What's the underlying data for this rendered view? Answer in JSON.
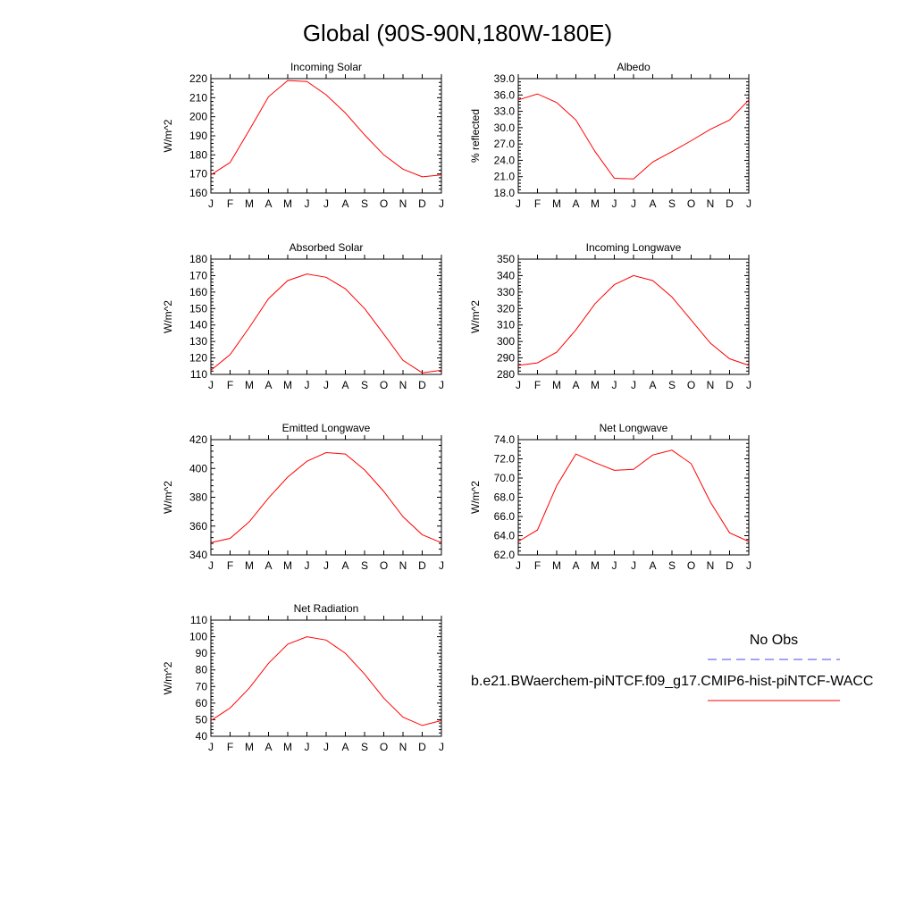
{
  "title": "Global (90S-90N,180W-180E)",
  "colors": {
    "model": "#ff0000",
    "obs": "#4a4ae8",
    "axis": "#000000"
  },
  "legend": {
    "obs_label": "No Obs",
    "model_label": "b.e21.BWaerchem-piNTCF.f09_g17.CMIP6-hist-piNTCF-WACC"
  },
  "chart_data": [
    {
      "type": "line",
      "title": "Incoming Solar",
      "ylabel": "W/m^2",
      "categories": [
        "J",
        "F",
        "M",
        "A",
        "M",
        "J",
        "J",
        "A",
        "S",
        "O",
        "N",
        "D",
        "J"
      ],
      "ylim": [
        160,
        220
      ],
      "yticks": [
        "220",
        "210",
        "200",
        "190",
        "180",
        "170",
        "160"
      ],
      "series": [
        {
          "values": [
            169.5,
            176,
            193,
            210.5,
            219,
            218.5,
            211.5,
            202,
            190.5,
            180,
            172.5,
            168.5,
            169.5
          ]
        }
      ]
    },
    {
      "type": "line",
      "title": "Albedo",
      "ylabel": "% reflected",
      "categories": [
        "J",
        "F",
        "M",
        "A",
        "M",
        "J",
        "J",
        "A",
        "S",
        "O",
        "N",
        "D",
        "J"
      ],
      "ylim": [
        18,
        39
      ],
      "yticks": [
        "39.0",
        "36.0",
        "33.0",
        "30.0",
        "27.0",
        "24.0",
        "21.0",
        "18.0"
      ],
      "series": [
        {
          "values": [
            35.1,
            36.2,
            34.6,
            31.4,
            25.6,
            20.7,
            20.6,
            23.7,
            25.6,
            27.6,
            29.7,
            31.4,
            35.1
          ]
        }
      ]
    },
    {
      "type": "line",
      "title": "Absorbed Solar",
      "ylabel": "W/m^2",
      "categories": [
        "J",
        "F",
        "M",
        "A",
        "M",
        "J",
        "J",
        "A",
        "S",
        "O",
        "N",
        "D",
        "J"
      ],
      "ylim": [
        110,
        180
      ],
      "yticks": [
        "180",
        "170",
        "160",
        "150",
        "140",
        "130",
        "120",
        "110"
      ],
      "series": [
        {
          "values": [
            112.5,
            122,
            138.5,
            156,
            167,
            171,
            169,
            162,
            150,
            134.5,
            118.5,
            111,
            112.5
          ]
        }
      ]
    },
    {
      "type": "line",
      "title": "Incoming Longwave",
      "ylabel": "W/m^2",
      "categories": [
        "J",
        "F",
        "M",
        "A",
        "M",
        "J",
        "J",
        "A",
        "S",
        "O",
        "N",
        "D",
        "J"
      ],
      "ylim": [
        280,
        350
      ],
      "yticks": [
        "350",
        "340",
        "330",
        "320",
        "310",
        "300",
        "290",
        "280"
      ],
      "series": [
        {
          "values": [
            285.5,
            287,
            293.5,
            307,
            323,
            334.5,
            340,
            337,
            327,
            313,
            299,
            289.5,
            285.5
          ]
        }
      ]
    },
    {
      "type": "line",
      "title": "Emitted Longwave",
      "ylabel": "W/m^2",
      "categories": [
        "J",
        "F",
        "M",
        "A",
        "M",
        "J",
        "J",
        "A",
        "S",
        "O",
        "N",
        "D",
        "J"
      ],
      "ylim": [
        340,
        420
      ],
      "yticks": [
        "420",
        "400",
        "380",
        "360",
        "340"
      ],
      "series": [
        {
          "values": [
            348.5,
            351.5,
            363,
            379.5,
            394,
            405,
            411,
            410,
            399,
            384,
            366.5,
            354,
            348.5
          ]
        }
      ]
    },
    {
      "type": "line",
      "title": "Net Longwave",
      "ylabel": "W/m^2",
      "categories": [
        "J",
        "F",
        "M",
        "A",
        "M",
        "J",
        "J",
        "A",
        "S",
        "O",
        "N",
        "D",
        "J"
      ],
      "ylim": [
        62,
        74
      ],
      "yticks": [
        "74.0",
        "72.0",
        "70.0",
        "68.0",
        "66.0",
        "64.0",
        "62.0"
      ],
      "series": [
        {
          "values": [
            63.4,
            64.6,
            69.2,
            72.5,
            71.6,
            70.8,
            70.9,
            72.4,
            72.9,
            71.5,
            67.5,
            64.3,
            63.4
          ]
        }
      ]
    },
    {
      "type": "line",
      "title": "Net Radiation",
      "ylabel": "W/m^2",
      "categories": [
        "J",
        "F",
        "M",
        "A",
        "M",
        "J",
        "J",
        "A",
        "S",
        "O",
        "N",
        "D",
        "J"
      ],
      "ylim": [
        40,
        110
      ],
      "yticks": [
        "110",
        "100",
        "90",
        "80",
        "70",
        "60",
        "50",
        "40"
      ],
      "series": [
        {
          "values": [
            49.5,
            57,
            69,
            84,
            95.5,
            100,
            98,
            90,
            77.5,
            63,
            51.5,
            46.5,
            49.5
          ]
        }
      ]
    }
  ]
}
